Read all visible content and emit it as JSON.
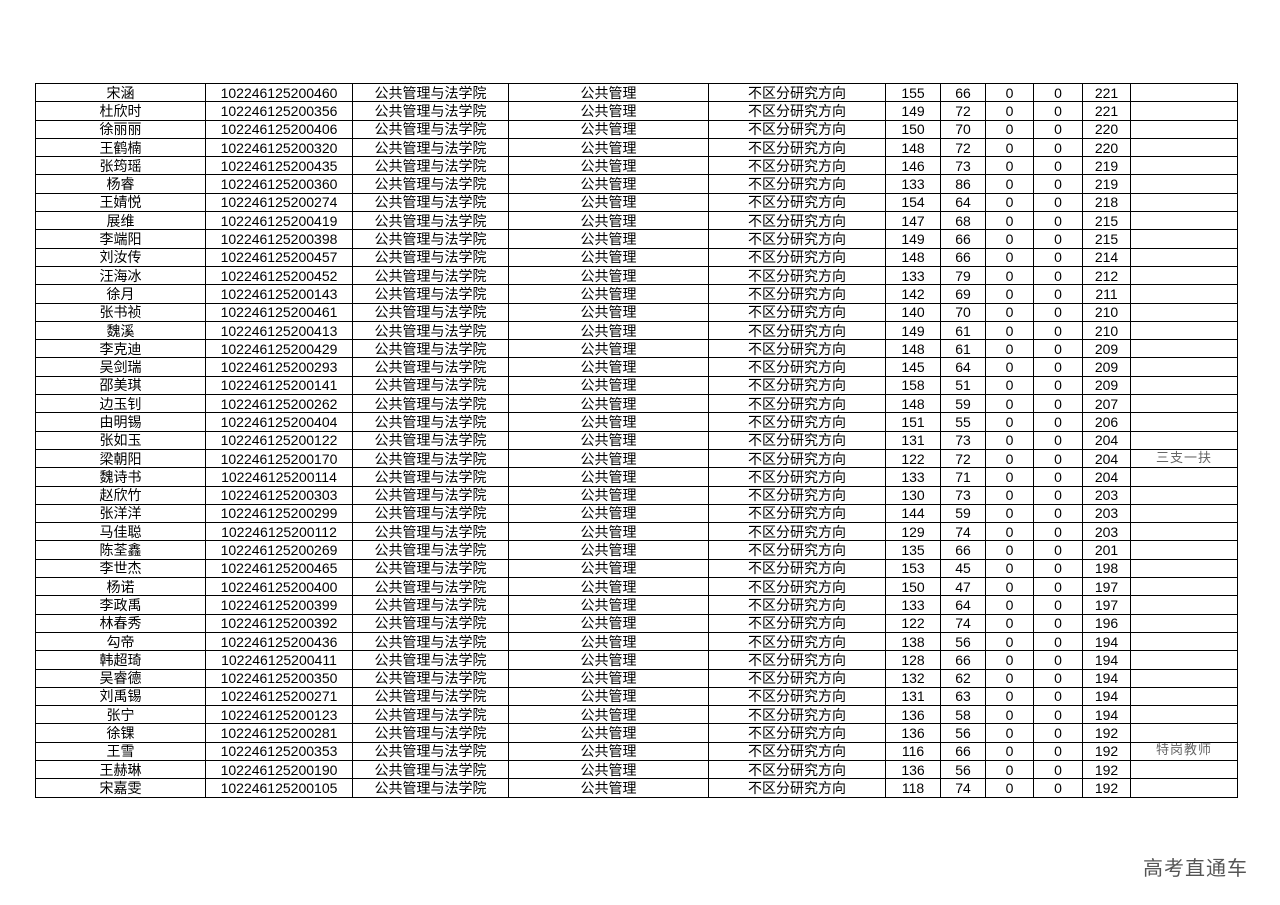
{
  "college": "公共管理与法学院",
  "major": "公共管理",
  "direction": "不区分研究方向",
  "watermark": "高考直通车",
  "rows": [
    [
      "宋涵",
      "102246125200460",
      "155",
      "66",
      "0",
      "0",
      "221",
      ""
    ],
    [
      "杜欣时",
      "102246125200356",
      "149",
      "72",
      "0",
      "0",
      "221",
      ""
    ],
    [
      "徐丽丽",
      "102246125200406",
      "150",
      "70",
      "0",
      "0",
      "220",
      ""
    ],
    [
      "王鹤楠",
      "102246125200320",
      "148",
      "72",
      "0",
      "0",
      "220",
      ""
    ],
    [
      "张筠瑶",
      "102246125200435",
      "146",
      "73",
      "0",
      "0",
      "219",
      ""
    ],
    [
      "杨睿",
      "102246125200360",
      "133",
      "86",
      "0",
      "0",
      "219",
      ""
    ],
    [
      "王婧悦",
      "102246125200274",
      "154",
      "64",
      "0",
      "0",
      "218",
      ""
    ],
    [
      "展维",
      "102246125200419",
      "147",
      "68",
      "0",
      "0",
      "215",
      ""
    ],
    [
      "李端阳",
      "102246125200398",
      "149",
      "66",
      "0",
      "0",
      "215",
      ""
    ],
    [
      "刘汝传",
      "102246125200457",
      "148",
      "66",
      "0",
      "0",
      "214",
      ""
    ],
    [
      "汪海冰",
      "102246125200452",
      "133",
      "79",
      "0",
      "0",
      "212",
      ""
    ],
    [
      "徐月",
      "102246125200143",
      "142",
      "69",
      "0",
      "0",
      "211",
      ""
    ],
    [
      "张书祯",
      "102246125200461",
      "140",
      "70",
      "0",
      "0",
      "210",
      ""
    ],
    [
      "魏溪",
      "102246125200413",
      "149",
      "61",
      "0",
      "0",
      "210",
      ""
    ],
    [
      "李克迪",
      "102246125200429",
      "148",
      "61",
      "0",
      "0",
      "209",
      ""
    ],
    [
      "吴剑瑞",
      "102246125200293",
      "145",
      "64",
      "0",
      "0",
      "209",
      ""
    ],
    [
      "邵美琪",
      "102246125200141",
      "158",
      "51",
      "0",
      "0",
      "209",
      ""
    ],
    [
      "边玉钊",
      "102246125200262",
      "148",
      "59",
      "0",
      "0",
      "207",
      ""
    ],
    [
      "由明锡",
      "102246125200404",
      "151",
      "55",
      "0",
      "0",
      "206",
      ""
    ],
    [
      "张如玉",
      "102246125200122",
      "131",
      "73",
      "0",
      "0",
      "204",
      ""
    ],
    [
      "梁朝阳",
      "102246125200170",
      "122",
      "72",
      "0",
      "0",
      "204",
      "三支一扶"
    ],
    [
      "魏诗书",
      "102246125200114",
      "133",
      "71",
      "0",
      "0",
      "204",
      ""
    ],
    [
      "赵欣竹",
      "102246125200303",
      "130",
      "73",
      "0",
      "0",
      "203",
      ""
    ],
    [
      "张洋洋",
      "102246125200299",
      "144",
      "59",
      "0",
      "0",
      "203",
      ""
    ],
    [
      "马佳聪",
      "102246125200112",
      "129",
      "74",
      "0",
      "0",
      "203",
      ""
    ],
    [
      "陈荃鑫",
      "102246125200269",
      "135",
      "66",
      "0",
      "0",
      "201",
      ""
    ],
    [
      "李世杰",
      "102246125200465",
      "153",
      "45",
      "0",
      "0",
      "198",
      ""
    ],
    [
      "杨诺",
      "102246125200400",
      "150",
      "47",
      "0",
      "0",
      "197",
      ""
    ],
    [
      "李政禹",
      "102246125200399",
      "133",
      "64",
      "0",
      "0",
      "197",
      ""
    ],
    [
      "林春秀",
      "102246125200392",
      "122",
      "74",
      "0",
      "0",
      "196",
      ""
    ],
    [
      "勾帝",
      "102246125200436",
      "138",
      "56",
      "0",
      "0",
      "194",
      ""
    ],
    [
      "韩超琦",
      "102246125200411",
      "128",
      "66",
      "0",
      "0",
      "194",
      ""
    ],
    [
      "吴睿德",
      "102246125200350",
      "132",
      "62",
      "0",
      "0",
      "194",
      ""
    ],
    [
      "刘禹锡",
      "102246125200271",
      "131",
      "63",
      "0",
      "0",
      "194",
      ""
    ],
    [
      "张宁",
      "102246125200123",
      "136",
      "58",
      "0",
      "0",
      "194",
      ""
    ],
    [
      "徐锞",
      "102246125200281",
      "136",
      "56",
      "0",
      "0",
      "192",
      ""
    ],
    [
      "王雪",
      "102246125200353",
      "116",
      "66",
      "0",
      "0",
      "192",
      "特岗教师"
    ],
    [
      "王赫琳",
      "102246125200190",
      "136",
      "56",
      "0",
      "0",
      "192",
      ""
    ],
    [
      "宋嘉雯",
      "102246125200105",
      "118",
      "74",
      "0",
      "0",
      "192",
      ""
    ]
  ]
}
